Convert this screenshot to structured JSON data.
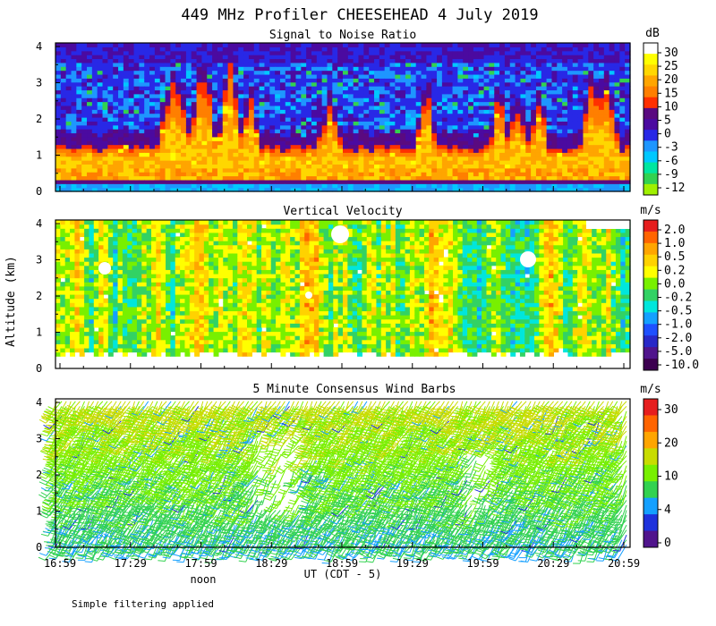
{
  "figure": {
    "title": "449 MHz Profiler CHEESEHEAD  4 July 2019",
    "ylabel": "Altitude (km)",
    "xlabel": "UT  (CDT - 5)",
    "noon_label": "noon",
    "footnote": "Simple filtering applied",
    "time_ticks": [
      "16:59",
      "17:29",
      "17:59",
      "18:29",
      "18:59",
      "19:29",
      "19:59",
      "20:29",
      "20:59"
    ],
    "altitude_ticks": [
      "0",
      "1",
      "2",
      "3",
      "4"
    ]
  },
  "chart_data": [
    {
      "type": "heatmap",
      "title": "Signal to Noise Ratio",
      "unit": "dB",
      "ylim": [
        0,
        4.1
      ],
      "colorbar_labels": [
        "30",
        "25",
        "20",
        "15",
        "10",
        "5",
        "0",
        "-3",
        "-6",
        "-9",
        "-12"
      ],
      "colorbar_colors": [
        "#ffffff",
        "#ffff00",
        "#ffd700",
        "#ffa500",
        "#ff7f00",
        "#ff3000",
        "#5a0a80",
        "#4b0aa0",
        "#2828e6",
        "#1e96ff",
        "#00c8ff",
        "#00e6a0",
        "#32d250",
        "#a0f000"
      ]
    },
    {
      "type": "heatmap",
      "title": "Vertical Velocity",
      "unit": "m/s",
      "ylim": [
        0,
        4.1
      ],
      "colorbar_labels": [
        "2.0",
        "1.0",
        "0.5",
        "0.2",
        "0.0",
        "-0.2",
        "-0.5",
        "-1.0",
        "-2.0",
        "-5.0",
        "-10.0"
      ],
      "colorbar_colors": [
        "#e61e1e",
        "#ff6400",
        "#ffa500",
        "#ffd200",
        "#ffff00",
        "#78f000",
        "#32d264",
        "#00e6dc",
        "#14a0ff",
        "#1e50ff",
        "#2828c8",
        "#50148c",
        "#3c0050"
      ]
    },
    {
      "type": "wind_barbs",
      "title": "5 Minute Consensus Wind Barbs",
      "unit": "m/s",
      "ylim": [
        0,
        4.1
      ],
      "colorbar_labels": [
        "30",
        "20",
        "10",
        "4",
        "0"
      ],
      "colorbar_colors": [
        "#e61e1e",
        "#ff6400",
        "#ffa500",
        "#c8dc00",
        "#78f000",
        "#32d250",
        "#14a0ff",
        "#1e32dc",
        "#50148c"
      ]
    }
  ]
}
